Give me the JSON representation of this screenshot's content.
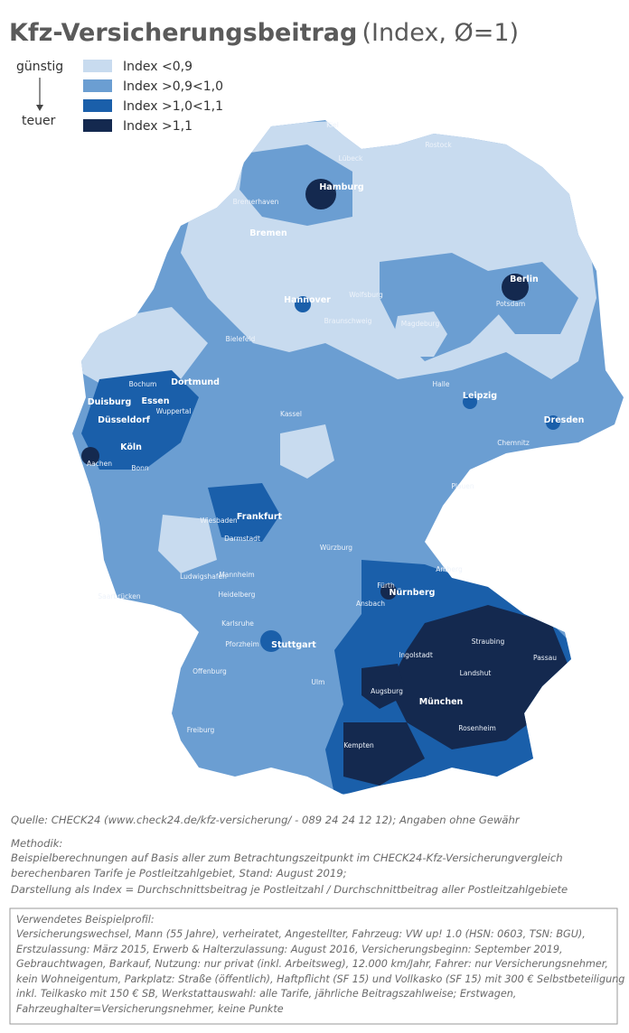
{
  "title": {
    "main": "Kfz-Versicherungsbeitrag",
    "sub": "(Index, Ø=1)"
  },
  "legend": {
    "low": "günstig",
    "high": "teuer",
    "items": [
      {
        "label": "Index <0,9",
        "color": "#c8dbef"
      },
      {
        "label": "Index >0,9<1,0",
        "color": "#6b9ed2"
      },
      {
        "label": "Index >1,0<1,1",
        "color": "#1a5faa"
      },
      {
        "label": "Index >1,1",
        "color": "#14294f"
      }
    ]
  },
  "cities": [
    {
      "name": "Hamburg",
      "bold": true
    },
    {
      "name": "Bremen",
      "bold": true
    },
    {
      "name": "Hannover",
      "bold": true
    },
    {
      "name": "Berlin",
      "bold": true
    },
    {
      "name": "Dortmund",
      "bold": true
    },
    {
      "name": "Essen",
      "bold": true
    },
    {
      "name": "Duisburg",
      "bold": true
    },
    {
      "name": "Düsseldorf",
      "bold": true
    },
    {
      "name": "Köln",
      "bold": true
    },
    {
      "name": "Leipzig",
      "bold": true
    },
    {
      "name": "Dresden",
      "bold": true
    },
    {
      "name": "Frankfurt",
      "bold": true
    },
    {
      "name": "Nürnberg",
      "bold": true
    },
    {
      "name": "Stuttgart",
      "bold": true
    },
    {
      "name": "München",
      "bold": true
    },
    {
      "name": "Kiel",
      "bold": false
    },
    {
      "name": "Lübeck",
      "bold": false
    },
    {
      "name": "Rostock",
      "bold": false
    },
    {
      "name": "Bremerhaven",
      "bold": false
    },
    {
      "name": "Potsdam",
      "bold": false
    },
    {
      "name": "Wolfsburg",
      "bold": false
    },
    {
      "name": "Braunschweig",
      "bold": false
    },
    {
      "name": "Magdeburg",
      "bold": false
    },
    {
      "name": "Bielefeld",
      "bold": false
    },
    {
      "name": "Bochum",
      "bold": false
    },
    {
      "name": "Wuppertal",
      "bold": false
    },
    {
      "name": "Halle",
      "bold": false
    },
    {
      "name": "Kassel",
      "bold": false
    },
    {
      "name": "Chemnitz",
      "bold": false
    },
    {
      "name": "Aachen",
      "bold": false
    },
    {
      "name": "Bonn",
      "bold": false
    },
    {
      "name": "Plauen",
      "bold": false
    },
    {
      "name": "Wiesbaden",
      "bold": false
    },
    {
      "name": "Darmstadt",
      "bold": false
    },
    {
      "name": "Würzburg",
      "bold": false
    },
    {
      "name": "Amberg",
      "bold": false
    },
    {
      "name": "Fürth",
      "bold": false
    },
    {
      "name": "Ludwigshafen",
      "bold": false
    },
    {
      "name": "Mannheim",
      "bold": false
    },
    {
      "name": "Heidelberg",
      "bold": false
    },
    {
      "name": "Ansbach",
      "bold": false
    },
    {
      "name": "Saarbrücken",
      "bold": false
    },
    {
      "name": "Karlsruhe",
      "bold": false
    },
    {
      "name": "Pforzheim",
      "bold": false
    },
    {
      "name": "Straubing",
      "bold": false
    },
    {
      "name": "Ingolstadt",
      "bold": false
    },
    {
      "name": "Passau",
      "bold": false
    },
    {
      "name": "Landshut",
      "bold": false
    },
    {
      "name": "Offenburg",
      "bold": false
    },
    {
      "name": "Augsburg",
      "bold": false
    },
    {
      "name": "Ulm",
      "bold": false
    },
    {
      "name": "Rosenheim",
      "bold": false
    },
    {
      "name": "Freiburg",
      "bold": false
    },
    {
      "name": "Kempten",
      "bold": false
    }
  ],
  "source": "Quelle: CHECK24 (www.check24.de/kfz-versicherung/ - 089 24 24 12 12); Angaben ohne Gewähr",
  "method": {
    "heading": "Methodik:",
    "lines": [
      "Beispielberechnungen auf Basis aller zum Betrachtungszeitpunkt im CHECK24-Kfz-Versicherungvergleich",
      "berechenbaren Tarife je Postleitzahlgebiet, Stand: August 2019;",
      "Darstellung als Index = Durchschnittsbeitrag je Postleitzahl / Durchschnittbeitrag aller Postleitzahlgebiete"
    ]
  },
  "profile": {
    "heading": "Verwendetes Beispielprofil:",
    "lines": [
      "Versicherungswechsel, Mann (55 Jahre), verheiratet, Angestellter, Fahrzeug: VW up! 1.0 (HSN: 0603, TSN: BGU),",
      "Erstzulassung: März 2015, Erwerb & Halterzulassung: August 2016, Versicherungsbeginn: September 2019,",
      "Gebrauchtwagen, Barkauf, Nutzung: nur privat (inkl. Arbeitsweg), 12.000 km/Jahr, Fahrer: nur Versicherungsnehmer,",
      "kein Wohneigentum, Parkplatz: Straße (öffentlich), Haftpflicht (SF 15) und Vollkasko (SF 15) mit 300 € Selbstbeteiligung",
      "inkl. Teilkasko mit 150 € SB, Werkstattauswahl: alle Tarife, jährliche Beitragszahlweise; Erstwagen,",
      "Fahrzeughalter=Versicherungsnehmer, keine Punkte"
    ]
  }
}
